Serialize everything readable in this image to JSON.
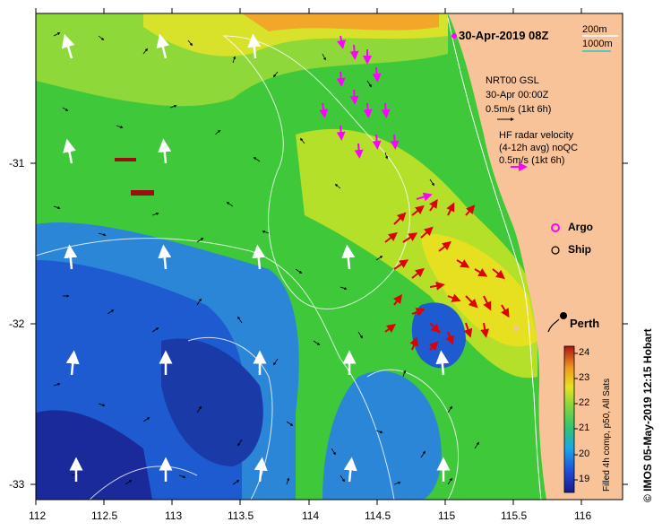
{
  "map": {
    "title": "30-Apr-2019 08Z",
    "scale_bar": {
      "short": "200m",
      "long": "1000m"
    },
    "model_info": {
      "line1": "NRT00 GSL",
      "line2": "30-Apr 00:00Z",
      "line3": "0.5m/s (1kt 6h)"
    },
    "radar_info": {
      "line1": "HF radar velocity",
      "line2": "(4-12h avg) noQC",
      "line3": "0.5m/s (1kt 6h)"
    },
    "legend": {
      "argo": "Argo",
      "ship": "Ship"
    },
    "city": "Perth",
    "colorbar": {
      "label": "Filled 4h comp, p50, All Sats",
      "ticks": [
        "24",
        "23",
        "22",
        "21",
        "20",
        "19"
      ]
    },
    "credit": "© IMOS 05-May-2019 12:15 Hobart",
    "x_ticks": [
      "112",
      "112.5",
      "113",
      "113.5",
      "114",
      "114.5",
      "115",
      "115.5",
      "116"
    ],
    "y_ticks": [
      "-31",
      "-32",
      "-33"
    ],
    "colors": {
      "land": "#f9c39a",
      "argo": "#ff00ff",
      "radar_arrow": "#e00000",
      "argo_arrow": "#ff00ff",
      "contour": "#ffffff"
    }
  }
}
